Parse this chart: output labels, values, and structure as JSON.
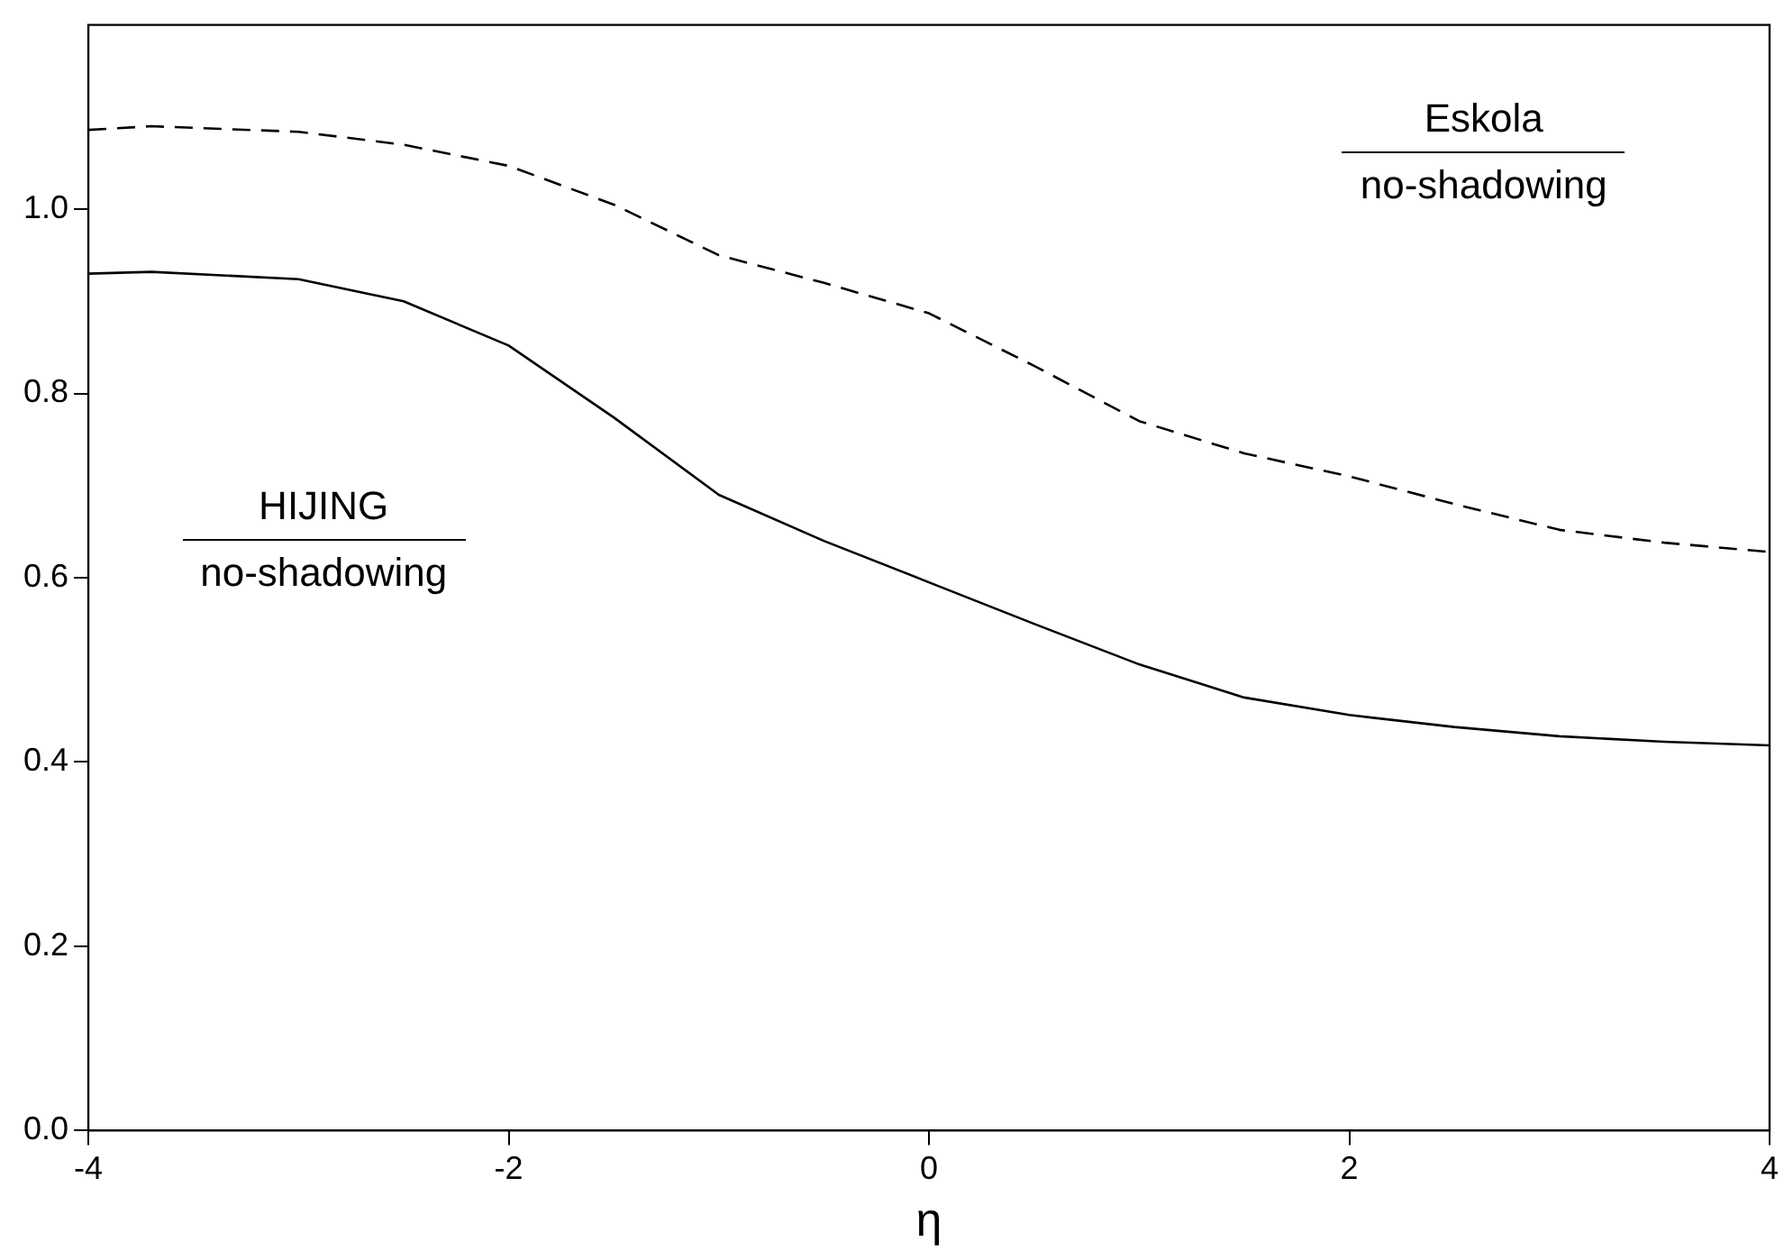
{
  "chart_data": {
    "type": "line",
    "xlabel": "η",
    "xlim": [
      -4,
      4
    ],
    "xticks": [
      -4,
      -2,
      0,
      2,
      4
    ],
    "ylim": [
      0,
      1.2
    ],
    "yticks": [
      {
        "value": 0,
        "label": "0.0"
      },
      {
        "value": 0.2,
        "label": "0.2"
      },
      {
        "value": 0.4,
        "label": "0.4"
      },
      {
        "value": 0.6,
        "label": "0.6"
      },
      {
        "value": 0.8,
        "label": "0.8"
      },
      {
        "value": 1,
        "label": "1.0"
      }
    ],
    "grid": false,
    "legend": false,
    "marker": "none",
    "annotations": [
      "Eskola",
      "no-shadowing",
      "HIJING",
      "no-shadowing"
    ],
    "x": [
      -4,
      -3.7,
      -3,
      -2.5,
      -2,
      -1.5,
      -1,
      -0.5,
      0,
      0.5,
      1,
      1.5,
      2,
      2.5,
      3,
      3.5,
      4
    ],
    "series": [
      {
        "color": "#000000",
        "line_style": "dashed",
        "values": [
          1.086,
          1.09,
          1.084,
          1.07,
          1.047,
          1.005,
          0.95,
          0.92,
          0.887,
          0.83,
          0.77,
          0.735,
          0.71,
          0.68,
          0.652,
          0.638,
          0.628
        ]
      },
      {
        "color": "#000000",
        "line_style": "solid",
        "values": [
          0.93,
          0.932,
          0.924,
          0.9,
          0.852,
          0.774,
          0.69,
          0.64,
          0.595,
          0.55,
          0.506,
          0.47,
          0.451,
          0.438,
          0.428,
          0.422,
          0.418
        ]
      }
    ]
  }
}
